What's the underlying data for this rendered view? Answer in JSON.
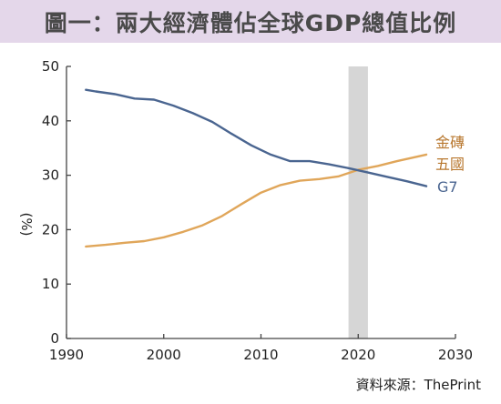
{
  "title": "圖一：兩大經濟體佔全球GDP總值比例",
  "source": "資料來源：ThePrint",
  "colors": {
    "title_bg": "#e4d7ea",
    "brics": "#e0a65a",
    "brics_label": "#b8772e",
    "g7": "#4a6590",
    "highlight": "#d6d6d6"
  },
  "chart_data": {
    "type": "line",
    "ylabel": "(%)",
    "xlim": [
      1990,
      2030
    ],
    "ylim": [
      0,
      50
    ],
    "x_ticks": [
      1990,
      2000,
      2010,
      2020,
      2030
    ],
    "y_ticks": [
      0,
      10,
      20,
      30,
      40,
      50
    ],
    "grid": false,
    "highlight_band": [
      2019,
      2021
    ],
    "series": [
      {
        "name": "金磚五國",
        "color": "#e0a65a",
        "x": [
          1992,
          1994,
          1996,
          1998,
          2000,
          2002,
          2004,
          2006,
          2008,
          2010,
          2012,
          2014,
          2016,
          2018,
          2020,
          2022,
          2024,
          2027
        ],
        "y": [
          16.9,
          17.2,
          17.6,
          17.9,
          18.6,
          19.6,
          20.8,
          22.5,
          24.7,
          26.8,
          28.2,
          29.0,
          29.3,
          29.8,
          31.0,
          31.7,
          32.6,
          33.8
        ]
      },
      {
        "name": "G7",
        "color": "#4a6590",
        "x": [
          1992,
          1993,
          1995,
          1997,
          1999,
          2001,
          2003,
          2005,
          2007,
          2009,
          2011,
          2013,
          2015,
          2017,
          2019,
          2021,
          2023,
          2025,
          2027
        ],
        "y": [
          45.7,
          45.4,
          44.9,
          44.1,
          43.9,
          42.8,
          41.4,
          39.8,
          37.6,
          35.5,
          33.8,
          32.6,
          32.6,
          32.0,
          31.3,
          30.5,
          29.7,
          28.9,
          28.0
        ]
      }
    ]
  }
}
